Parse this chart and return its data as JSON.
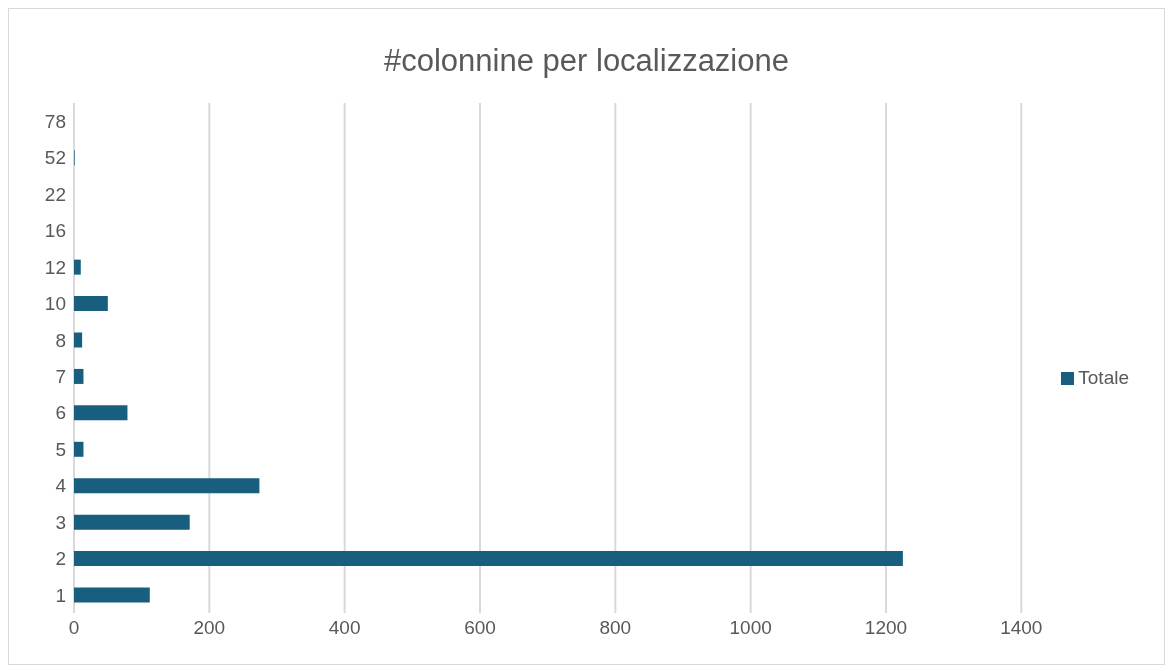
{
  "chart_data": {
    "type": "bar",
    "orientation": "horizontal",
    "title": "#colonnine per localizzazione",
    "categories": [
      "78",
      "52",
      "22",
      "16",
      "12",
      "10",
      "8",
      "7",
      "6",
      "5",
      "4",
      "3",
      "2",
      "1"
    ],
    "series": [
      {
        "name": "Totale",
        "color": "#175e7f",
        "values": [
          0,
          1,
          0,
          0,
          10,
          50,
          12,
          14,
          79,
          14,
          274,
          171,
          1225,
          112
        ]
      }
    ],
    "xlim": [
      0,
      1400
    ],
    "xticks": [
      0,
      200,
      400,
      600,
      800,
      1000,
      1200,
      1400
    ],
    "grid": "x",
    "legend": "right"
  }
}
